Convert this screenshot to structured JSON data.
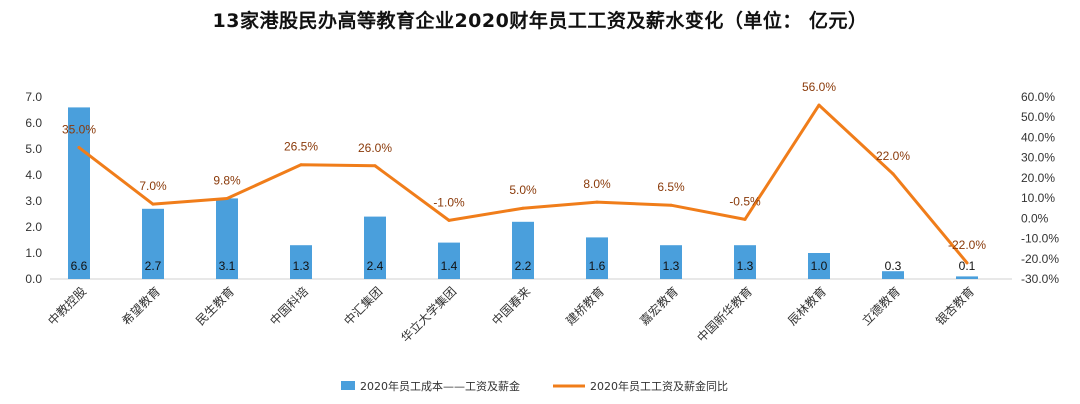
{
  "chart_data": {
    "type": "bar",
    "title": "13家港股民办高等教育企业2020财年员工工资及薪水变化（单位： 亿元）",
    "categories": [
      "中教控股",
      "希望教育",
      "民生教育",
      "中国科培",
      "中汇集团",
      "华立大学集团",
      "中国春来",
      "建桥教育",
      "嘉宏教育",
      "中国新华教育",
      "辰林教育",
      "立德教育",
      "银杏教育"
    ],
    "series": [
      {
        "name": "2020年员工成本——工资及薪金",
        "type": "bar",
        "axis": "left",
        "color": "#4a9fdc",
        "values": [
          6.6,
          2.7,
          3.1,
          1.3,
          2.4,
          1.4,
          2.2,
          1.6,
          1.3,
          1.3,
          1.0,
          0.3,
          0.1
        ],
        "labels": [
          "6.6",
          "2.7",
          "3.1",
          "1.3",
          "2.4",
          "1.4",
          "2.2",
          "1.6",
          "1.3",
          "1.3",
          "1.0",
          "0.3",
          "0.1"
        ]
      },
      {
        "name": "2020年员工工资及薪金同比",
        "type": "line",
        "axis": "right",
        "color": "#f07d1a",
        "values": [
          35.0,
          7.0,
          9.8,
          26.5,
          26.0,
          -1.0,
          5.0,
          8.0,
          6.5,
          -0.5,
          56.0,
          22.0,
          -22.0
        ],
        "labels": [
          "35.0%",
          "7.0%",
          "9.8%",
          "26.5%",
          "26.0%",
          "-1.0%",
          "5.0%",
          "8.0%",
          "6.5%",
          "-0.5%",
          "56.0%",
          "22.0%",
          "-22.0%"
        ]
      }
    ],
    "y_left": {
      "min": 0,
      "max": 7,
      "step": 1,
      "ticks": [
        "0.0",
        "1.0",
        "2.0",
        "3.0",
        "4.0",
        "5.0",
        "6.0",
        "7.0"
      ]
    },
    "y_right": {
      "min": -30,
      "max": 60,
      "step": 10,
      "ticks": [
        "-30.0%",
        "-20.0%",
        "-10.0%",
        "0.0%",
        "10.0%",
        "20.0%",
        "30.0%",
        "40.0%",
        "50.0%",
        "60.0%"
      ]
    },
    "grid": false,
    "legend_position": "bottom"
  }
}
